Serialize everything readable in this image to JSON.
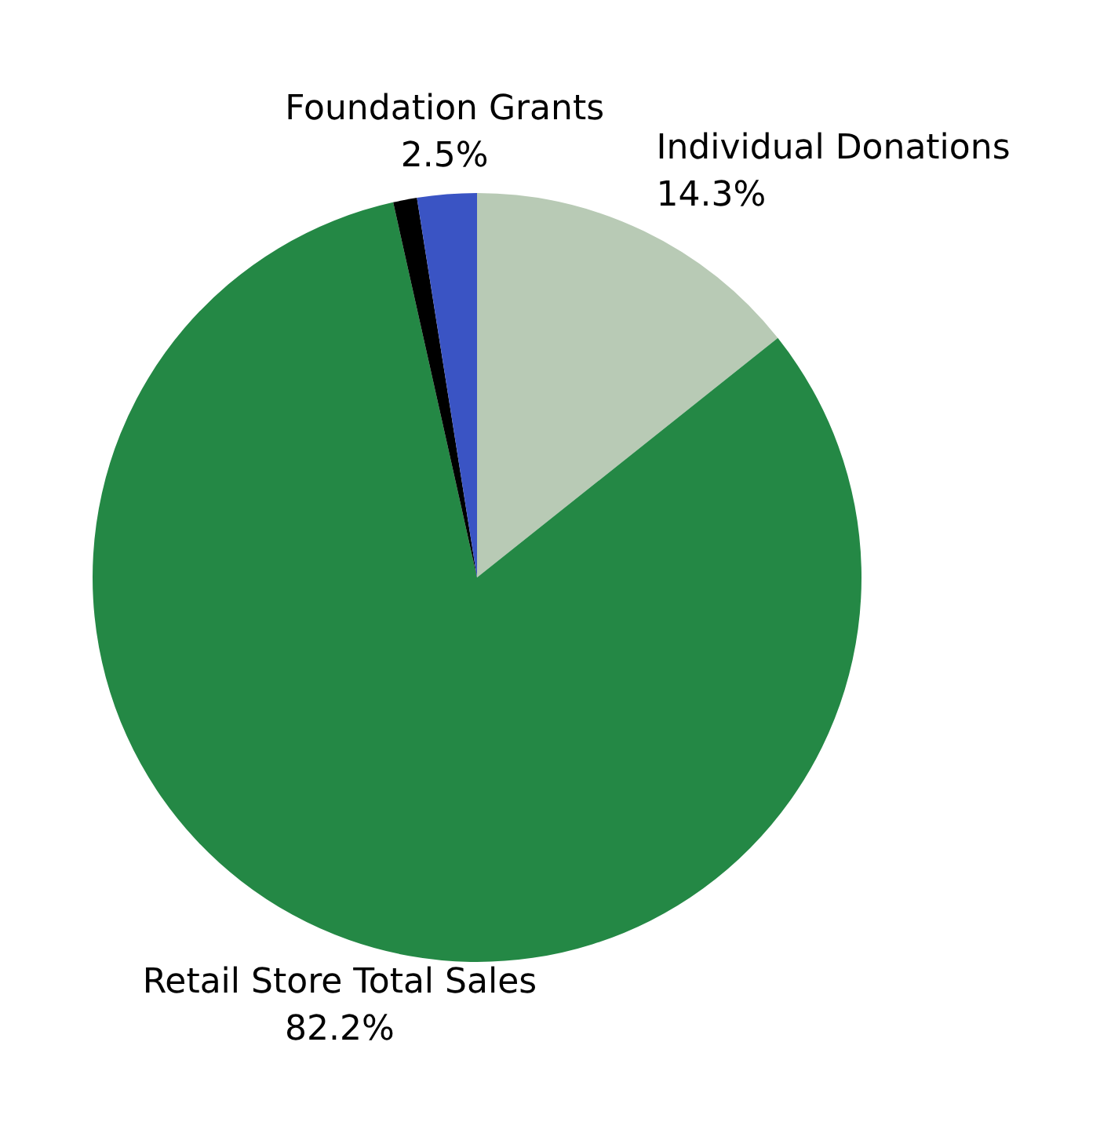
{
  "chart_data": {
    "type": "pie",
    "categories": [
      "Individual Donations",
      "Retail Store Total Sales",
      null,
      "Foundation Grants"
    ],
    "values": [
      14.3,
      82.2,
      1.0,
      2.5
    ],
    "value_labels": [
      "14.3%",
      "82.2%",
      null,
      "2.5%"
    ],
    "colors": [
      "#b8cab5",
      "#248845",
      "#000000",
      "#3a54c4"
    ],
    "legend": false
  }
}
